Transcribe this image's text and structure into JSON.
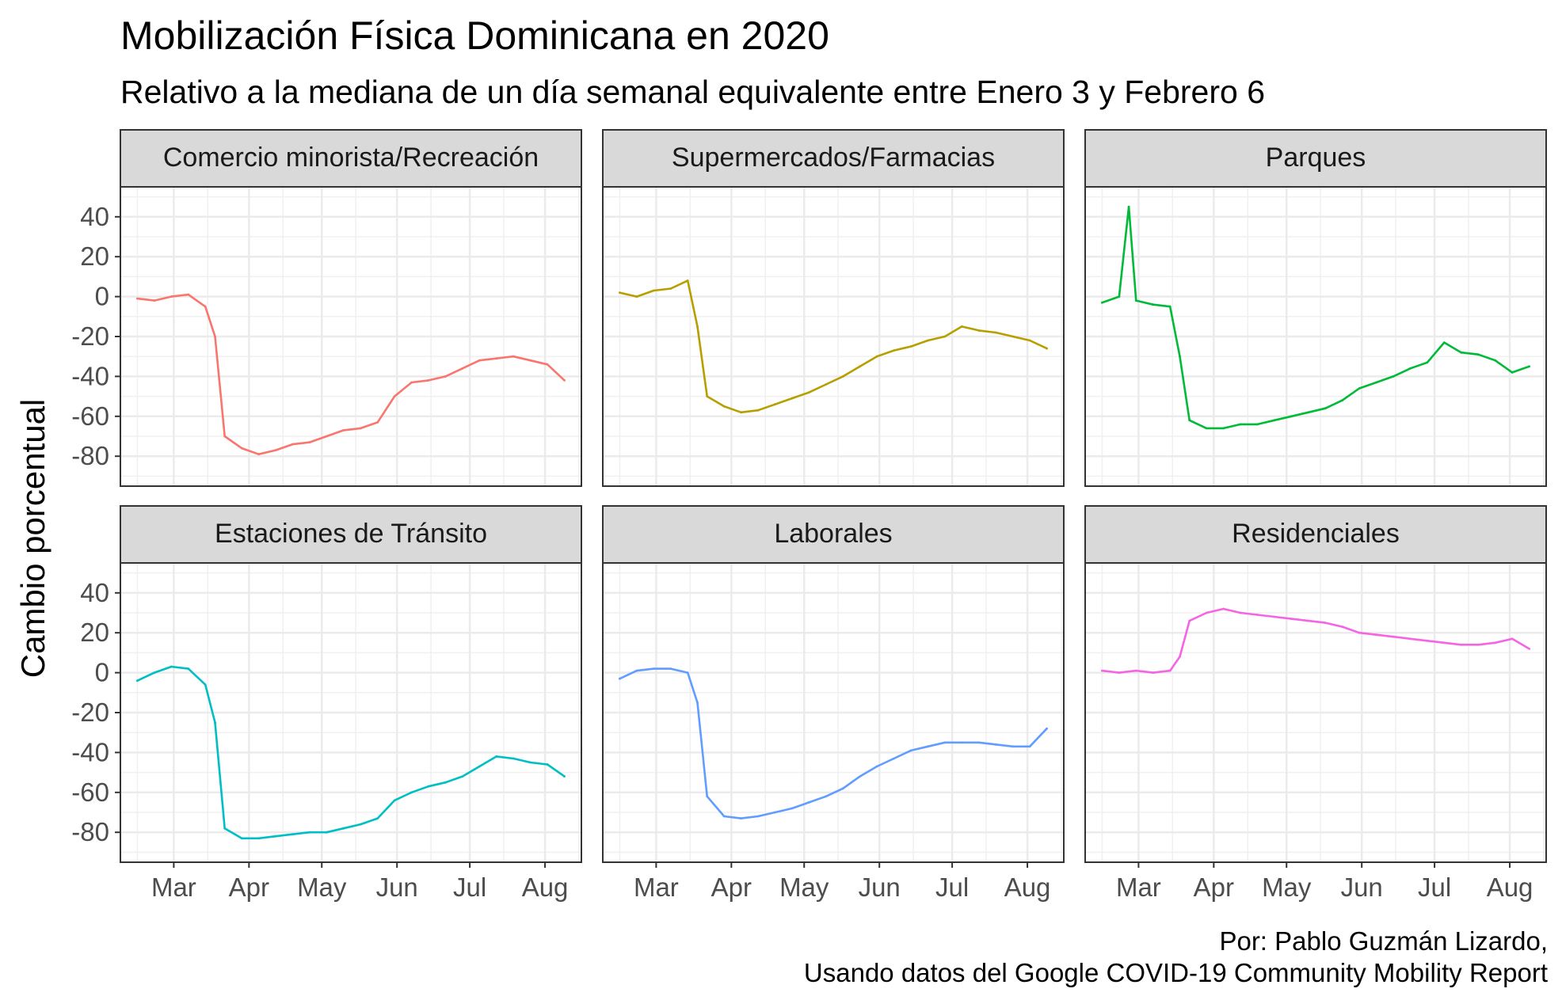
{
  "title": "Mobilización Física Dominicana en 2020",
  "subtitle": "Relativo a la mediana de un día semanal equivalente entre Enero 3 y Febrero 6",
  "ylabel": "Cambio porcentual",
  "caption": [
    "Por: Pablo Guzmán Lizardo,",
    "Usando datos del Google COVID-19 Community Mobility Report"
  ],
  "chart_data": {
    "type": "line",
    "ylabel": "Cambio porcentual",
    "ylim": [
      -95,
      55
    ],
    "y_ticks": [
      40,
      20,
      0,
      -20,
      -40,
      -60,
      -80
    ],
    "x_ticks": [
      "Mar",
      "Apr",
      "May",
      "Jun",
      "Jul",
      "Aug"
    ],
    "x_range": [
      "2020-02-08",
      "2020-08-16"
    ],
    "grid": true,
    "layout": "facet 2x3",
    "panels": [
      {
        "name": "Comercio minorista/Recreación",
        "color": "#F8766D",
        "x": [
          "2020-02-15",
          "2020-02-22",
          "2020-02-29",
          "2020-03-07",
          "2020-03-14",
          "2020-03-18",
          "2020-03-22",
          "2020-03-29",
          "2020-04-05",
          "2020-04-12",
          "2020-04-19",
          "2020-04-26",
          "2020-05-03",
          "2020-05-10",
          "2020-05-17",
          "2020-05-24",
          "2020-05-31",
          "2020-06-07",
          "2020-06-14",
          "2020-06-21",
          "2020-06-28",
          "2020-07-05",
          "2020-07-12",
          "2020-07-19",
          "2020-07-26",
          "2020-08-02",
          "2020-08-09"
        ],
        "values": [
          -1,
          -2,
          0,
          1,
          -5,
          -20,
          -70,
          -76,
          -79,
          -77,
          -74,
          -73,
          -70,
          -67,
          -66,
          -63,
          -50,
          -43,
          -42,
          -40,
          -36,
          -32,
          -31,
          -30,
          -32,
          -34,
          -42
        ]
      },
      {
        "name": "Supermercados/Farmacias",
        "color": "#B79F00",
        "x": [
          "2020-02-15",
          "2020-02-22",
          "2020-02-29",
          "2020-03-07",
          "2020-03-14",
          "2020-03-18",
          "2020-03-22",
          "2020-03-29",
          "2020-04-05",
          "2020-04-12",
          "2020-04-19",
          "2020-04-26",
          "2020-05-03",
          "2020-05-10",
          "2020-05-17",
          "2020-05-24",
          "2020-05-31",
          "2020-06-07",
          "2020-06-14",
          "2020-06-21",
          "2020-06-28",
          "2020-07-05",
          "2020-07-12",
          "2020-07-19",
          "2020-07-26",
          "2020-08-02",
          "2020-08-09"
        ],
        "values": [
          2,
          0,
          3,
          4,
          8,
          -15,
          -50,
          -55,
          -58,
          -57,
          -54,
          -51,
          -48,
          -44,
          -40,
          -35,
          -30,
          -27,
          -25,
          -22,
          -20,
          -15,
          -17,
          -18,
          -20,
          -22,
          -26
        ]
      },
      {
        "name": "Parques",
        "color": "#00BA38",
        "x": [
          "2020-02-15",
          "2020-02-22",
          "2020-02-26",
          "2020-02-29",
          "2020-03-07",
          "2020-03-14",
          "2020-03-18",
          "2020-03-22",
          "2020-03-29",
          "2020-04-05",
          "2020-04-12",
          "2020-04-19",
          "2020-04-26",
          "2020-05-03",
          "2020-05-10",
          "2020-05-17",
          "2020-05-24",
          "2020-05-31",
          "2020-06-07",
          "2020-06-14",
          "2020-06-21",
          "2020-06-28",
          "2020-07-05",
          "2020-07-12",
          "2020-07-19",
          "2020-07-26",
          "2020-08-02",
          "2020-08-09"
        ],
        "values": [
          -3,
          0,
          45,
          -2,
          -4,
          -5,
          -30,
          -62,
          -66,
          -66,
          -64,
          -64,
          -62,
          -60,
          -58,
          -56,
          -52,
          -46,
          -43,
          -40,
          -36,
          -33,
          -23,
          -28,
          -29,
          -32,
          -38,
          -35
        ]
      },
      {
        "name": "Estaciones de Tránsito",
        "color": "#00BFC4",
        "x": [
          "2020-02-15",
          "2020-02-22",
          "2020-02-29",
          "2020-03-07",
          "2020-03-14",
          "2020-03-18",
          "2020-03-22",
          "2020-03-29",
          "2020-04-05",
          "2020-04-12",
          "2020-04-19",
          "2020-04-26",
          "2020-05-03",
          "2020-05-10",
          "2020-05-17",
          "2020-05-24",
          "2020-05-31",
          "2020-06-07",
          "2020-06-14",
          "2020-06-21",
          "2020-06-28",
          "2020-07-05",
          "2020-07-12",
          "2020-07-19",
          "2020-07-26",
          "2020-08-02",
          "2020-08-09"
        ],
        "values": [
          -4,
          0,
          3,
          2,
          -6,
          -25,
          -78,
          -83,
          -83,
          -82,
          -81,
          -80,
          -80,
          -78,
          -76,
          -73,
          -64,
          -60,
          -57,
          -55,
          -52,
          -47,
          -42,
          -43,
          -45,
          -46,
          -52
        ]
      },
      {
        "name": "Laborales",
        "color": "#619CFF",
        "x": [
          "2020-02-15",
          "2020-02-22",
          "2020-02-29",
          "2020-03-07",
          "2020-03-14",
          "2020-03-18",
          "2020-03-22",
          "2020-03-29",
          "2020-04-05",
          "2020-04-12",
          "2020-04-19",
          "2020-04-26",
          "2020-05-03",
          "2020-05-10",
          "2020-05-17",
          "2020-05-24",
          "2020-05-31",
          "2020-06-07",
          "2020-06-14",
          "2020-06-21",
          "2020-06-28",
          "2020-07-05",
          "2020-07-12",
          "2020-07-19",
          "2020-07-26",
          "2020-08-02",
          "2020-08-09"
        ],
        "values": [
          -3,
          1,
          2,
          2,
          0,
          -15,
          -62,
          -72,
          -73,
          -72,
          -70,
          -68,
          -65,
          -62,
          -58,
          -52,
          -47,
          -43,
          -39,
          -37,
          -35,
          -35,
          -35,
          -36,
          -37,
          -37,
          -28
        ]
      },
      {
        "name": "Residenciales",
        "color": "#F564E3",
        "x": [
          "2020-02-15",
          "2020-02-22",
          "2020-02-29",
          "2020-03-07",
          "2020-03-14",
          "2020-03-18",
          "2020-03-22",
          "2020-03-29",
          "2020-04-05",
          "2020-04-12",
          "2020-04-19",
          "2020-04-26",
          "2020-05-03",
          "2020-05-10",
          "2020-05-17",
          "2020-05-24",
          "2020-05-31",
          "2020-06-07",
          "2020-06-14",
          "2020-06-21",
          "2020-06-28",
          "2020-07-05",
          "2020-07-12",
          "2020-07-19",
          "2020-07-26",
          "2020-08-02",
          "2020-08-09"
        ],
        "values": [
          1,
          0,
          1,
          0,
          1,
          8,
          26,
          30,
          32,
          30,
          29,
          28,
          27,
          26,
          25,
          23,
          20,
          19,
          18,
          17,
          16,
          15,
          14,
          14,
          15,
          17,
          12
        ]
      }
    ]
  }
}
